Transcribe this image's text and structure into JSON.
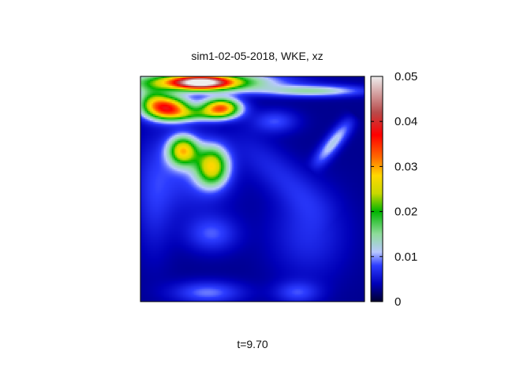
{
  "chart_data": {
    "type": "heatmap",
    "title": "sim1-02-05-2018, WKE, xz",
    "footer": "t=9.70",
    "xlabel": "",
    "ylabel": "",
    "grid": false,
    "color_scale": {
      "min": 0,
      "max": 0.05,
      "ticks": [
        0,
        0.01,
        0.02,
        0.03,
        0.04,
        0.05
      ],
      "tick_labels": [
        "0",
        "0.01",
        "0.02",
        "0.03",
        "0.04",
        "0.05"
      ],
      "stops": [
        {
          "value": 0.0,
          "color": "#000030"
        },
        {
          "value": 0.004,
          "color": "#0000b8"
        },
        {
          "value": 0.008,
          "color": "#2c3cff"
        },
        {
          "value": 0.011,
          "color": "#b8c8ff"
        },
        {
          "value": 0.015,
          "color": "#8edc9a"
        },
        {
          "value": 0.02,
          "color": "#00b400"
        },
        {
          "value": 0.024,
          "color": "#c8d800"
        },
        {
          "value": 0.028,
          "color": "#ffd800"
        },
        {
          "value": 0.032,
          "color": "#ff6a00"
        },
        {
          "value": 0.037,
          "color": "#ff0000"
        },
        {
          "value": 0.042,
          "color": "#b84a4a"
        },
        {
          "value": 0.05,
          "color": "#eeeeee"
        }
      ]
    },
    "field": {
      "background": 0.0028,
      "features": [
        {
          "type": "gaussian",
          "cx": 0.26,
          "cy": 0.975,
          "sx": 0.22,
          "sy": 0.03,
          "amp": 0.024
        },
        {
          "type": "gaussian",
          "cx": 0.27,
          "cy": 0.972,
          "sx": 0.09,
          "sy": 0.02,
          "amp": 0.03
        },
        {
          "type": "gaussian",
          "cx": 0.77,
          "cy": 0.935,
          "sx": 0.16,
          "sy": 0.018,
          "amp": 0.011
        },
        {
          "type": "gaussian",
          "cx": 0.12,
          "cy": 0.86,
          "sx": 0.07,
          "sy": 0.036,
          "amp": 0.031
        },
        {
          "type": "gaussian",
          "cx": 0.36,
          "cy": 0.86,
          "sx": 0.06,
          "sy": 0.03,
          "amp": 0.029
        },
        {
          "type": "gaussian",
          "cx": 0.24,
          "cy": 0.83,
          "sx": 0.09,
          "sy": 0.022,
          "amp": 0.01
        },
        {
          "type": "gaussian",
          "cx": 0.05,
          "cy": 0.9,
          "sx": 0.05,
          "sy": 0.04,
          "amp": 0.01
        },
        {
          "type": "gaussian",
          "cx": 0.19,
          "cy": 0.67,
          "sx": 0.045,
          "sy": 0.045,
          "amp": 0.023
        },
        {
          "type": "gaussian",
          "cx": 0.32,
          "cy": 0.6,
          "sx": 0.05,
          "sy": 0.06,
          "amp": 0.022
        },
        {
          "type": "gaussian",
          "cx": 0.22,
          "cy": 0.57,
          "sx": 0.13,
          "sy": 0.13,
          "amp": 0.0045
        },
        {
          "type": "gaussian",
          "cx": 0.32,
          "cy": 0.3,
          "sx": 0.08,
          "sy": 0.055,
          "amp": 0.0055
        },
        {
          "type": "gaussian",
          "cx": 0.6,
          "cy": 0.8,
          "sx": 0.07,
          "sy": 0.035,
          "amp": 0.0055
        },
        {
          "type": "gaussian",
          "cx": 0.3,
          "cy": 0.04,
          "sx": 0.11,
          "sy": 0.035,
          "amp": 0.0065
        },
        {
          "type": "gaussian",
          "cx": 0.7,
          "cy": 0.04,
          "sx": 0.07,
          "sy": 0.035,
          "amp": 0.005
        },
        {
          "type": "gaussian",
          "cx": 0.75,
          "cy": 0.3,
          "sx": 0.12,
          "sy": 0.14,
          "amp": 0.004
        },
        {
          "type": "gaussian",
          "cx": 0.06,
          "cy": 0.45,
          "sx": 0.06,
          "sy": 0.18,
          "amp": 0.0035
        },
        {
          "type": "ridge",
          "x0": 0.76,
          "y0": 0.58,
          "x1": 0.96,
          "y1": 0.83,
          "width": 0.025,
          "amp": 0.009
        },
        {
          "type": "ridge",
          "x0": 0.38,
          "y0": 0.78,
          "x1": 0.86,
          "y1": 0.35,
          "width": 0.06,
          "amp": 0.0035
        }
      ]
    }
  }
}
